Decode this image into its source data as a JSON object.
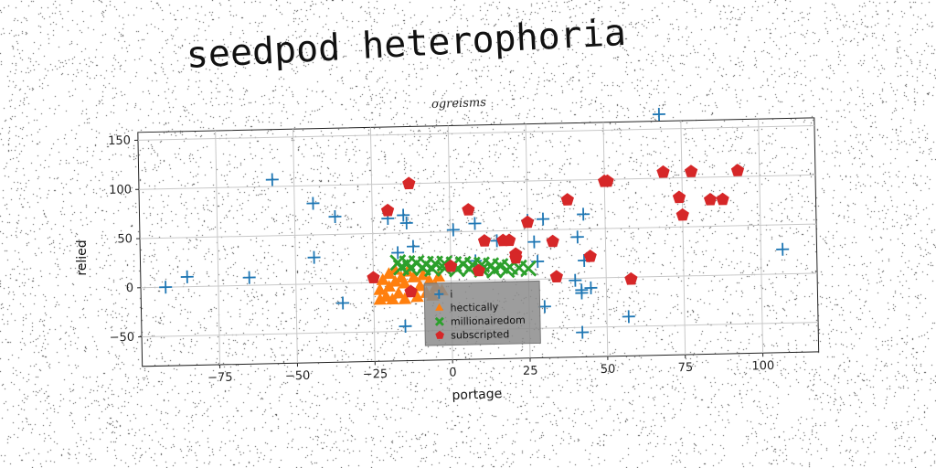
{
  "chart_data": {
    "type": "scatter",
    "title": "seedpod heterophoria",
    "subtitle": "ogreisms",
    "xlabel": "portage",
    "ylabel": "relied",
    "xlim": [
      -100,
      118
    ],
    "ylim": [
      -80,
      158
    ],
    "xticks": [
      -75,
      -50,
      -25,
      0,
      25,
      50,
      75,
      100
    ],
    "yticks": [
      -50,
      0,
      50,
      100,
      150
    ],
    "grid": true,
    "legend_position": "lower-center",
    "series": [
      {
        "name": "i",
        "marker": "plus",
        "color": "#1f77b4",
        "points": [
          [
            -92,
            0
          ],
          [
            -85,
            10
          ],
          [
            -65,
            8
          ],
          [
            -57,
            107
          ],
          [
            -44,
            82
          ],
          [
            -44,
            27
          ],
          [
            -37,
            68
          ],
          [
            -35,
            -20
          ],
          [
            -20,
            65
          ],
          [
            -17,
            30
          ],
          [
            -15,
            68
          ],
          [
            -14,
            60
          ],
          [
            -12,
            36
          ],
          [
            -15,
            -45
          ],
          [
            1,
            52
          ],
          [
            8,
            58
          ],
          [
            8,
            20
          ],
          [
            15,
            40
          ],
          [
            25,
            60
          ],
          [
            27,
            38
          ],
          [
            28,
            18
          ],
          [
            30,
            61
          ],
          [
            30,
            -28
          ],
          [
            40,
            -2
          ],
          [
            41,
            42
          ],
          [
            42,
            -12
          ],
          [
            42,
            -15
          ],
          [
            43,
            18
          ],
          [
            43,
            65
          ],
          [
            45,
            -10
          ],
          [
            42,
            -55
          ],
          [
            57,
            -40
          ],
          [
            68,
            165
          ],
          [
            107,
            25
          ]
        ]
      },
      {
        "name": "hectically",
        "marker": "triangle",
        "color": "#ff7f0e",
        "points": [
          [
            -23,
            -18
          ],
          [
            -23,
            -8
          ],
          [
            -22,
            2
          ],
          [
            -21,
            -15
          ],
          [
            -20,
            8
          ],
          [
            -20,
            -5
          ],
          [
            -19,
            -18
          ],
          [
            -18,
            0
          ],
          [
            -18,
            12
          ],
          [
            -17,
            -12
          ],
          [
            -16,
            4
          ],
          [
            -15,
            -18
          ],
          [
            -15,
            -2
          ],
          [
            -14,
            10
          ],
          [
            -13,
            -10
          ],
          [
            -12,
            4
          ],
          [
            -11,
            -16
          ],
          [
            -10,
            -5
          ],
          [
            -9,
            6
          ],
          [
            -8,
            -12
          ],
          [
            -7,
            0
          ],
          [
            -6,
            -15
          ],
          [
            -5,
            -6
          ],
          [
            -4,
            4
          ],
          [
            -3,
            -10
          ]
        ]
      },
      {
        "name": "millionairedom",
        "marker": "x",
        "color": "#2ca02c",
        "points": [
          [
            -17,
            20
          ],
          [
            -14,
            19
          ],
          [
            -11,
            19
          ],
          [
            -8,
            18
          ],
          [
            -5,
            18
          ],
          [
            -2,
            18
          ],
          [
            1,
            17
          ],
          [
            4,
            17
          ],
          [
            7,
            16
          ],
          [
            10,
            16
          ],
          [
            13,
            15
          ],
          [
            16,
            14
          ],
          [
            19,
            13
          ],
          [
            22,
            12
          ],
          [
            25,
            11
          ],
          [
            -16,
            15
          ],
          [
            -13,
            14
          ],
          [
            -9,
            14
          ],
          [
            -6,
            13
          ],
          [
            -2,
            13
          ],
          [
            2,
            12
          ],
          [
            6,
            12
          ],
          [
            10,
            11
          ],
          [
            14,
            10
          ],
          [
            18,
            10
          ]
        ]
      },
      {
        "name": "subscripted",
        "marker": "pentagon",
        "color": "#d62728",
        "points": [
          [
            -13,
            100
          ],
          [
            -20,
            73
          ],
          [
            6,
            72
          ],
          [
            -25,
            5
          ],
          [
            -13,
            -10
          ],
          [
            0,
            15
          ],
          [
            9,
            10
          ],
          [
            11,
            40
          ],
          [
            17,
            40
          ],
          [
            19,
            40
          ],
          [
            21,
            26
          ],
          [
            21,
            22
          ],
          [
            25,
            58
          ],
          [
            33,
            38
          ],
          [
            34,
            2
          ],
          [
            38,
            80
          ],
          [
            45,
            22
          ],
          [
            50,
            98
          ],
          [
            51,
            98
          ],
          [
            58,
            -2
          ],
          [
            69,
            106
          ],
          [
            74,
            80
          ],
          [
            75,
            62
          ],
          [
            78,
            106
          ],
          [
            84,
            77
          ],
          [
            88,
            77
          ],
          [
            93,
            106
          ]
        ]
      }
    ]
  }
}
